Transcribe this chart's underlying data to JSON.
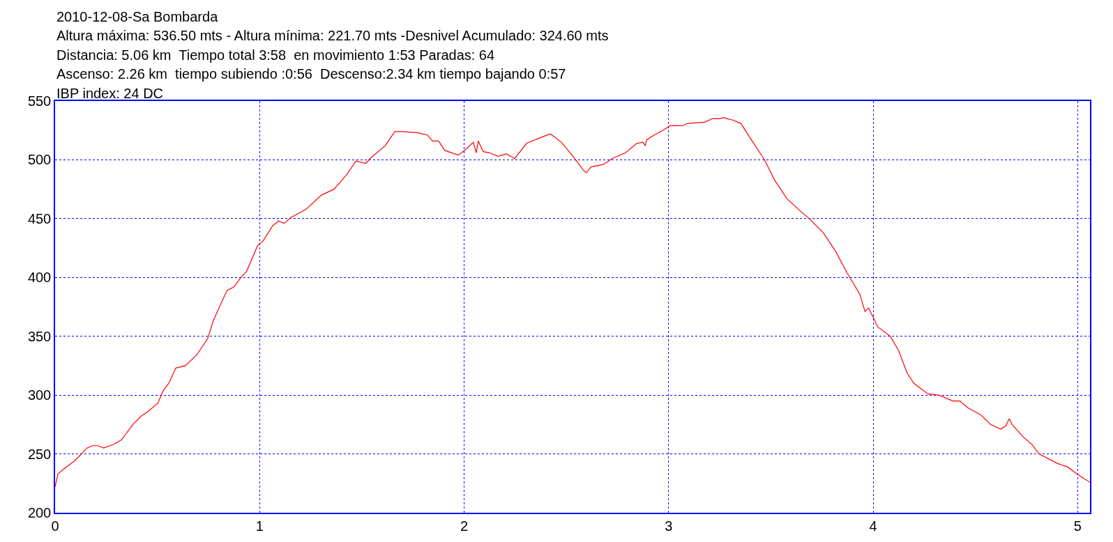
{
  "chart_data": {
    "type": "line",
    "title": "2010-12-08-Sa Bombarda",
    "annotations": [
      "Altura máxima: 536.50 mts - Altura mínima: 221.70 mts -Desnivel Acumulado: 324.60 mts",
      "Distancia: 5.06 km  Tiempo total 3:58  en movimiento 1:53 Paradas: 64",
      "Ascenso: 2.26 km  tiempo subiendo :0:56  Descenso:2.34 km tiempo bajando 0:57",
      "IBP index: 24 DC"
    ],
    "xlim": [
      0,
      5.06
    ],
    "xticks": [
      0,
      1,
      2,
      3,
      4,
      5
    ],
    "ylim": [
      200,
      550
    ],
    "yticks": [
      200,
      250,
      300,
      350,
      400,
      450,
      500,
      550
    ],
    "grid": true,
    "line_style": "solid",
    "series": [
      {
        "color": "#ff0000",
        "x": [
          0,
          0.014,
          0.041,
          0.095,
          0.156,
          0.183,
          0.21,
          0.237,
          0.285,
          0.325,
          0.38,
          0.42,
          0.454,
          0.502,
          0.529,
          0.556,
          0.59,
          0.637,
          0.692,
          0.746,
          0.773,
          0.814,
          0.841,
          0.875,
          0.908,
          0.936,
          0.99,
          1.017,
          1.064,
          1.092,
          1.119,
          1.153,
          1.227,
          1.302,
          1.363,
          1.424,
          1.471,
          1.519,
          1.546,
          1.614,
          1.661,
          1.695,
          1.776,
          1.821,
          1.845,
          1.875,
          1.905,
          1.972,
          2.002,
          2.045,
          2.059,
          2.069,
          2.093,
          2.124,
          2.166,
          2.208,
          2.247,
          2.305,
          2.39,
          2.422,
          2.475,
          2.523,
          2.584,
          2.598,
          2.62,
          2.68,
          2.723,
          2.789,
          2.844,
          2.874,
          2.886,
          2.892,
          2.928,
          2.971,
          3.007,
          3.068,
          3.092,
          3.176,
          3.213,
          3.249,
          3.271,
          3.286,
          3.31,
          3.353,
          3.408,
          3.469,
          3.517,
          3.578,
          3.653,
          3.687,
          3.756,
          3.817,
          3.872,
          3.934,
          3.96,
          3.978,
          4.022,
          4.083,
          4.124,
          4.165,
          4.199,
          4.268,
          4.322,
          4.39,
          4.424,
          4.465,
          4.527,
          4.574,
          4.624,
          4.649,
          4.665,
          4.679,
          4.736,
          4.777,
          4.811,
          4.9,
          4.95,
          5.004,
          5.031,
          5.06
        ],
        "values": [
          222,
          233,
          237,
          244,
          255,
          257,
          257,
          255,
          258,
          262,
          275,
          282,
          286,
          293,
          304,
          310,
          323,
          325,
          334,
          348,
          363,
          379,
          389,
          392,
          400,
          405,
          427,
          431,
          444,
          448,
          446,
          451,
          458,
          470,
          475,
          487,
          499,
          497,
          502,
          512,
          524,
          524,
          523,
          521,
          516,
          516,
          508,
          504,
          508,
          515,
          506,
          516,
          507,
          506,
          503,
          505,
          501,
          514,
          520,
          522,
          515,
          505,
          491,
          489,
          494,
          496,
          501,
          506,
          514,
          515,
          512,
          517,
          521,
          525,
          529,
          529,
          531,
          532,
          535,
          535,
          536,
          535,
          534,
          531,
          516,
          500,
          483,
          467,
          455,
          450,
          438,
          422,
          404,
          386,
          371,
          374,
          358,
          350,
          338,
          319,
          310,
          301,
          300,
          295,
          295,
          289,
          283,
          275,
          271,
          274,
          280,
          275,
          264,
          258,
          250,
          242,
          239,
          232,
          229,
          226
        ]
      }
    ]
  }
}
